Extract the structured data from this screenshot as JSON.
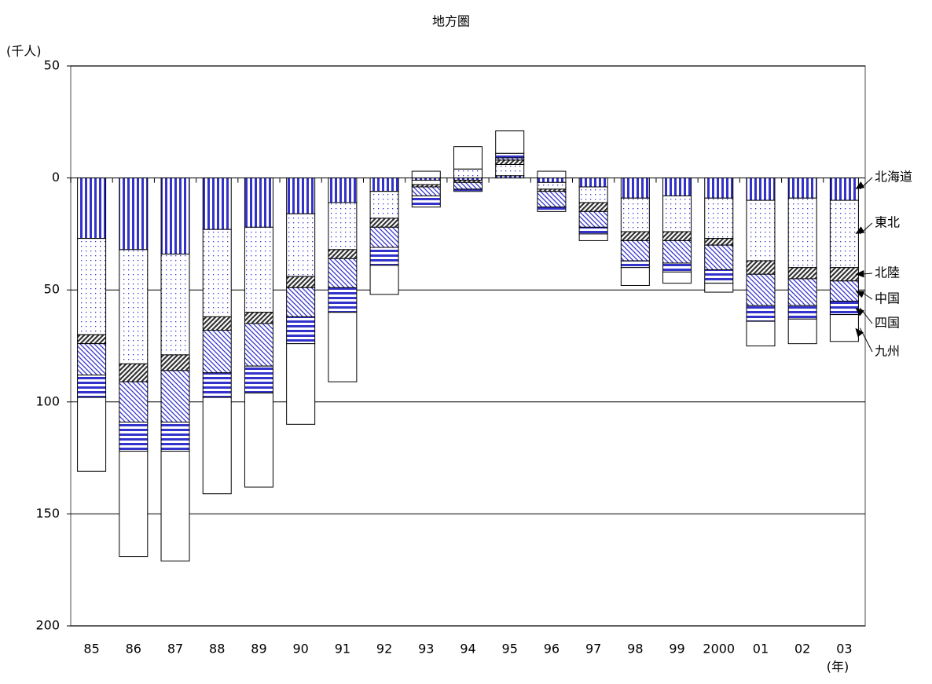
{
  "chart_data": {
    "type": "stacked-bar",
    "title": "地方圏",
    "y_label": "(千人)",
    "x_label": "(年)",
    "categories": [
      "85",
      "86",
      "87",
      "88",
      "89",
      "90",
      "91",
      "92",
      "93",
      "94",
      "95",
      "96",
      "97",
      "98",
      "99",
      "2000",
      "01",
      "02",
      "03"
    ],
    "series": [
      {
        "name": "北海道",
        "color": "#3333cc",
        "pattern": "vertical",
        "values": [
          27,
          32,
          34,
          23,
          22,
          16,
          11,
          6,
          1,
          1,
          -1,
          2,
          4,
          9,
          8,
          9,
          10,
          9,
          10
        ]
      },
      {
        "name": "東北",
        "color": "#3333cc",
        "pattern": "dots",
        "values": [
          43,
          51,
          45,
          39,
          38,
          28,
          21,
          12,
          2,
          -4,
          -5,
          3,
          7,
          15,
          16,
          18,
          27,
          31,
          30
        ]
      },
      {
        "name": "北陸",
        "color": "#333333",
        "pattern": "dark-diagonal",
        "values": [
          4,
          8,
          7,
          6,
          5,
          5,
          4,
          4,
          1,
          1,
          -2,
          1,
          4,
          4,
          4,
          3,
          6,
          5,
          6
        ]
      },
      {
        "name": "中国",
        "color": "#3333cc",
        "pattern": "diagonal",
        "values": [
          14,
          18,
          23,
          19,
          19,
          13,
          13,
          9,
          4,
          3,
          -1,
          7,
          7,
          9,
          10,
          11,
          14,
          12,
          9
        ]
      },
      {
        "name": "四国",
        "color": "#3333cc",
        "pattern": "horizontal",
        "values": [
          10,
          13,
          13,
          11,
          12,
          12,
          11,
          8,
          5,
          1,
          -2,
          2,
          3,
          3,
          4,
          6,
          7,
          6,
          6
        ]
      },
      {
        "name": "九州",
        "color": "#ffffff",
        "pattern": "none",
        "values": [
          33,
          47,
          49,
          43,
          42,
          36,
          31,
          13,
          -3,
          -10,
          -10,
          -3,
          3,
          8,
          5,
          4,
          11,
          11,
          12
        ]
      }
    ],
    "ylim": [
      -50,
      200
    ],
    "y_inverted": true,
    "yticks": [
      {
        "value": -50,
        "label": "50"
      },
      0,
      50,
      100,
      150,
      200
    ],
    "grid": true
  }
}
